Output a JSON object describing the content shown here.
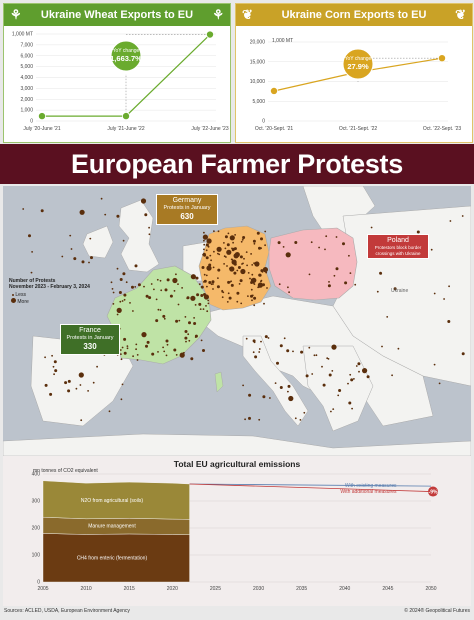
{
  "wheat": {
    "title": "Ukraine Wheat Exports to EU",
    "unit": "1,000 MT",
    "yoy_label": "YoY change",
    "yoy_value": "1,663.7%",
    "color": "#6aab2e",
    "header_color": "#5f9e2e"
  },
  "corn": {
    "title": "Ukraine Corn Exports to EU",
    "unit": "1,000 MT",
    "yoy_label": "YoY change",
    "yoy_value": "27.9%",
    "color": "#d9a520",
    "header_color": "#c9a227"
  },
  "banner": {
    "title": "European Farmer Protests"
  },
  "map": {
    "legend_title": "Number of Protests",
    "legend_period": "November 2023 - February 3, 2024",
    "legend_less": "Less",
    "legend_more": "More",
    "ukraine_label": "Ukraine",
    "germany": {
      "name": "Germany",
      "sub": "Protests in January",
      "value": "630",
      "color": "#f5b96a"
    },
    "france": {
      "name": "France",
      "sub": "Protests in January",
      "value": "330",
      "color": "#bfe3a6"
    },
    "poland": {
      "name": "Poland",
      "sub": "Protestors block border crossings with Ukraine",
      "color": "#f6b9bf"
    }
  },
  "emissions": {
    "title": "Total EU agricultural emissions",
    "unit": "mn tonnes of CO2 equivalent",
    "layer_n2o": "N2O from agricultural (soils)",
    "layer_manure": "Manure management",
    "layer_ch4": "CH4 from enteric (fermentation)",
    "existing_label": "With existing measures",
    "additional_label": "With additional measures",
    "additional_badge": "-9%"
  },
  "footer": {
    "sources": "Sources: ACLED, USDA, European Environment Agency",
    "copyright": "© 2024® Geopolitical Futures"
  },
  "chart_data": [
    {
      "type": "line",
      "title": "Ukraine Wheat Exports to EU",
      "ylabel": "1,000 MT",
      "categories": [
        "July '20-June '21",
        "July '21-June '22",
        "July '22-June '23"
      ],
      "values": [
        450,
        450,
        7950
      ],
      "ylim": [
        0,
        8000
      ],
      "yticks": [
        0,
        1000,
        2000,
        3000,
        4000,
        5000,
        6000,
        7000,
        8000
      ],
      "yticklabels": [
        "0",
        "1,000",
        "2,000",
        "3,000",
        "4,000",
        "5,000",
        "6,000",
        "7,000",
        "1,000 MT"
      ],
      "annotation": "YoY change 1,663.7%"
    },
    {
      "type": "line",
      "title": "Ukraine Corn Exports to EU",
      "ylabel": "1,000 MT",
      "categories": [
        "Oct. '20-Sept. '21",
        "Oct. '21-Sept. '22",
        "Oct. '22-Sept. '23"
      ],
      "values": [
        7600,
        12400,
        15900
      ],
      "ylim": [
        0,
        20000
      ],
      "yticks": [
        0,
        5000,
        10000,
        15000,
        20000
      ],
      "yticklabels": [
        "0",
        "5,000",
        "10,000",
        "15,000",
        "20,000"
      ],
      "annotation": "YoY change 27.9%"
    },
    {
      "type": "area",
      "title": "Total EU agricultural emissions",
      "ylabel": "mn tonnes of CO2 equivalent",
      "x": [
        2005,
        2010,
        2015,
        2020,
        2022
      ],
      "xticks": [
        2005,
        2010,
        2015,
        2020,
        2025,
        2030,
        2035,
        2040,
        2045,
        2050
      ],
      "ylim": [
        0,
        400
      ],
      "yticks": [
        0,
        100,
        200,
        300,
        400
      ],
      "series": [
        {
          "name": "CH4 from enteric (fermentation)",
          "values": [
            180,
            176,
            178,
            176,
            175
          ]
        },
        {
          "name": "Manure management",
          "values": [
            60,
            58,
            58,
            57,
            57
          ]
        },
        {
          "name": "N2O from agricultural (soils)",
          "values": [
            135,
            132,
            134,
            133,
            131
          ]
        }
      ],
      "projections": [
        {
          "name": "With existing measures",
          "values": [
            [
              2022,
              363
            ],
            [
              2050,
              355
            ]
          ]
        },
        {
          "name": "With additional measures",
          "values": [
            [
              2022,
              363
            ],
            [
              2050,
              335
            ]
          ]
        }
      ]
    }
  ]
}
